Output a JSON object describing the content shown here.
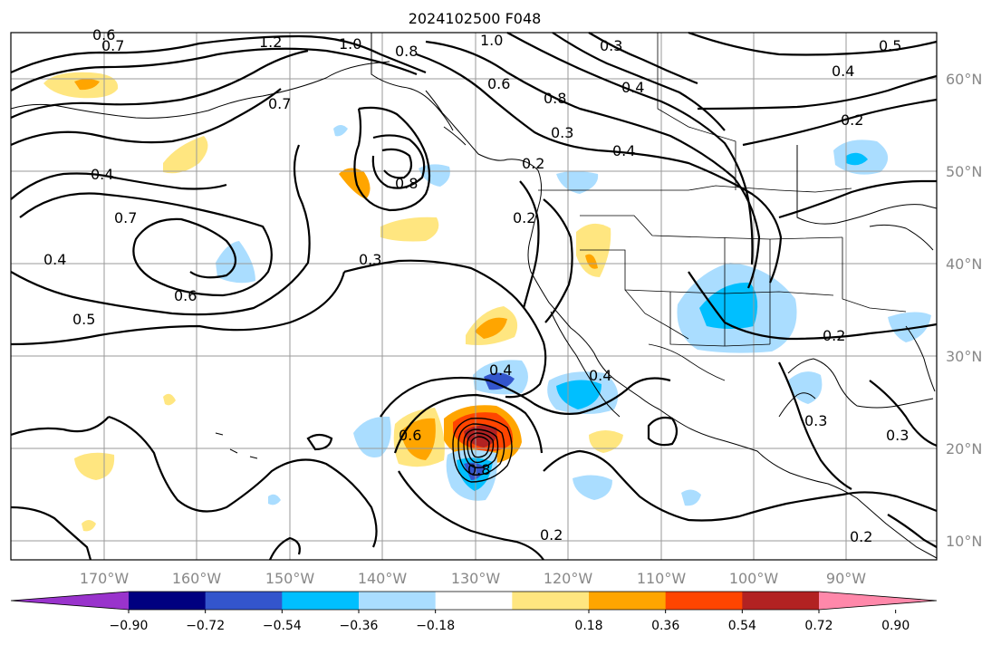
{
  "title": "2024102500 F048",
  "map": {
    "lon_labels": [
      "170°W",
      "160°W",
      "150°W",
      "140°W",
      "130°W",
      "120°W",
      "110°W",
      "100°W",
      "90°W"
    ],
    "lat_labels": [
      "60°N",
      "50°N",
      "40°N",
      "30°N",
      "20°N",
      "10°N"
    ],
    "contour_labels": [
      "0.6",
      "0.7",
      "1.2",
      "1.0",
      "0.8",
      "1.0",
      "0.3",
      "0.5",
      "0.4",
      "0.6",
      "0.7",
      "0.8",
      "0.3",
      "0.4",
      "0.2",
      "0.2",
      "0.8",
      "0.4",
      "0.7",
      "0.4",
      "0.6",
      "0.3",
      "0.2",
      "0.4",
      "0.5",
      "0.4",
      "0.3",
      "0.3",
      "0.2",
      "0.2",
      "0.2",
      "0.4",
      "0.8",
      "0.6"
    ]
  },
  "colorbar": {
    "colors": [
      "#9933cc",
      "#000080",
      "#3355cc",
      "#00bfff",
      "#aaddff",
      "#ffffff",
      "#ffe680",
      "#ffa500",
      "#ff4500",
      "#b22222",
      "#ff88aa"
    ],
    "tick_labels": [
      "−0.90",
      "−0.72",
      "−0.54",
      "−0.36",
      "−0.18",
      "0.18",
      "0.36",
      "0.54",
      "0.72",
      "0.90"
    ]
  }
}
